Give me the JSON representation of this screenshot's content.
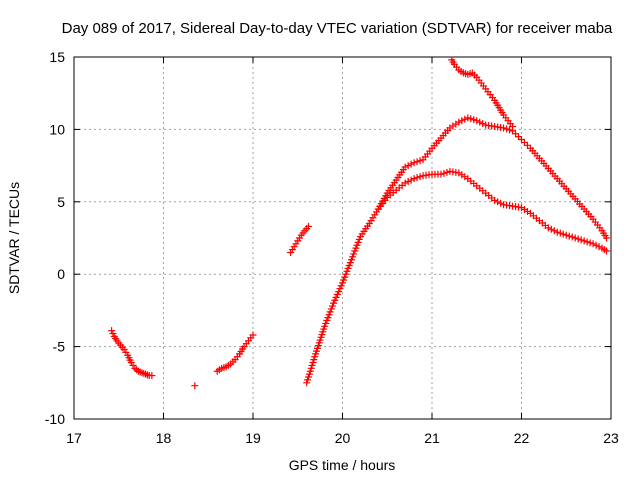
{
  "chart_data": {
    "type": "scatter",
    "title": "Day 089 of 2017, Sidereal Day-to-day VTEC variation (SDTVAR) for receiver maba",
    "xlabel": "GPS time / hours",
    "ylabel": "SDTVAR / TECUs",
    "xlim": [
      17,
      23
    ],
    "ylim": [
      -10,
      15
    ],
    "xticks": [
      17,
      18,
      19,
      20,
      21,
      22,
      23
    ],
    "yticks": [
      -10,
      -5,
      0,
      5,
      10,
      15
    ],
    "marker": "+",
    "color": "#ff0000",
    "grid": true,
    "segments": [
      {
        "name": "arc-17h",
        "x": [
          17.42,
          17.45,
          17.48,
          17.52,
          17.56,
          17.6,
          17.64,
          17.68,
          17.72,
          17.76,
          17.8,
          17.84,
          17.87
        ],
        "y": [
          -3.9,
          -4.3,
          -4.6,
          -4.9,
          -5.2,
          -5.6,
          -6.1,
          -6.5,
          -6.7,
          -6.8,
          -6.9,
          -7.0,
          -7.0
        ]
      },
      {
        "name": "isolated-18h",
        "x": [
          18.35
        ],
        "y": [
          -7.7
        ]
      },
      {
        "name": "arc-18.6h",
        "x": [
          18.6,
          18.65,
          18.7,
          18.75,
          18.8,
          18.85,
          18.9,
          18.95,
          19.0
        ],
        "y": [
          -6.7,
          -6.5,
          -6.4,
          -6.2,
          -5.9,
          -5.5,
          -5.0,
          -4.6,
          -4.2
        ]
      },
      {
        "name": "arc-19.4h",
        "x": [
          19.42,
          19.46,
          19.5,
          19.54,
          19.58,
          19.62
        ],
        "y": [
          1.5,
          1.9,
          2.3,
          2.7,
          3.0,
          3.3
        ]
      },
      {
        "name": "arc-main-rise",
        "x": [
          19.6,
          19.7,
          19.8,
          19.9,
          20.0,
          20.1,
          20.2,
          20.3,
          20.4
        ],
        "y": [
          -7.5,
          -5.5,
          -3.6,
          -2.0,
          -0.6,
          1.0,
          2.6,
          3.5,
          4.5
        ]
      },
      {
        "name": "arc-upper-20.5h",
        "x": [
          20.4,
          20.5,
          20.6,
          20.7,
          20.8,
          20.9,
          21.0,
          21.1,
          21.2,
          21.3,
          21.4,
          21.5,
          21.6,
          21.7,
          21.8,
          21.9,
          22.0,
          22.1,
          22.2,
          22.3,
          22.4,
          22.5,
          22.6,
          22.7,
          22.8,
          22.9,
          22.95
        ],
        "y": [
          4.5,
          5.6,
          6.5,
          7.4,
          7.7,
          7.9,
          8.7,
          9.4,
          10.1,
          10.5,
          10.8,
          10.6,
          10.3,
          10.2,
          10.1,
          9.9,
          9.3,
          8.7,
          8.0,
          7.3,
          6.6,
          5.9,
          5.2,
          4.5,
          3.8,
          3.0,
          2.5
        ]
      },
      {
        "name": "arc-lower-20.5h",
        "x": [
          20.4,
          20.5,
          20.6,
          20.7,
          20.8,
          20.9,
          21.0,
          21.1,
          21.2,
          21.3,
          21.4,
          21.5,
          21.6,
          21.7,
          21.8,
          21.9,
          22.0,
          22.1,
          22.2,
          22.3,
          22.4,
          22.5,
          22.6,
          22.7,
          22.8,
          22.9,
          22.95
        ],
        "y": [
          4.5,
          5.3,
          5.8,
          6.3,
          6.6,
          6.8,
          6.9,
          6.9,
          7.1,
          7.0,
          6.6,
          6.1,
          5.6,
          5.1,
          4.8,
          4.7,
          4.6,
          4.2,
          3.7,
          3.2,
          2.9,
          2.7,
          2.5,
          2.3,
          2.1,
          1.8,
          1.6
        ]
      },
      {
        "name": "arc-high-21.2h",
        "x": [
          21.22,
          21.25,
          21.3,
          21.35,
          21.4,
          21.45,
          21.5,
          21.55,
          21.6,
          21.65,
          21.7,
          21.75,
          21.8,
          21.85,
          21.9
        ],
        "y": [
          14.8,
          14.5,
          14.1,
          13.9,
          13.8,
          13.9,
          13.6,
          13.2,
          12.8,
          12.4,
          12.0,
          11.5,
          11.0,
          10.6,
          10.2
        ]
      }
    ]
  }
}
